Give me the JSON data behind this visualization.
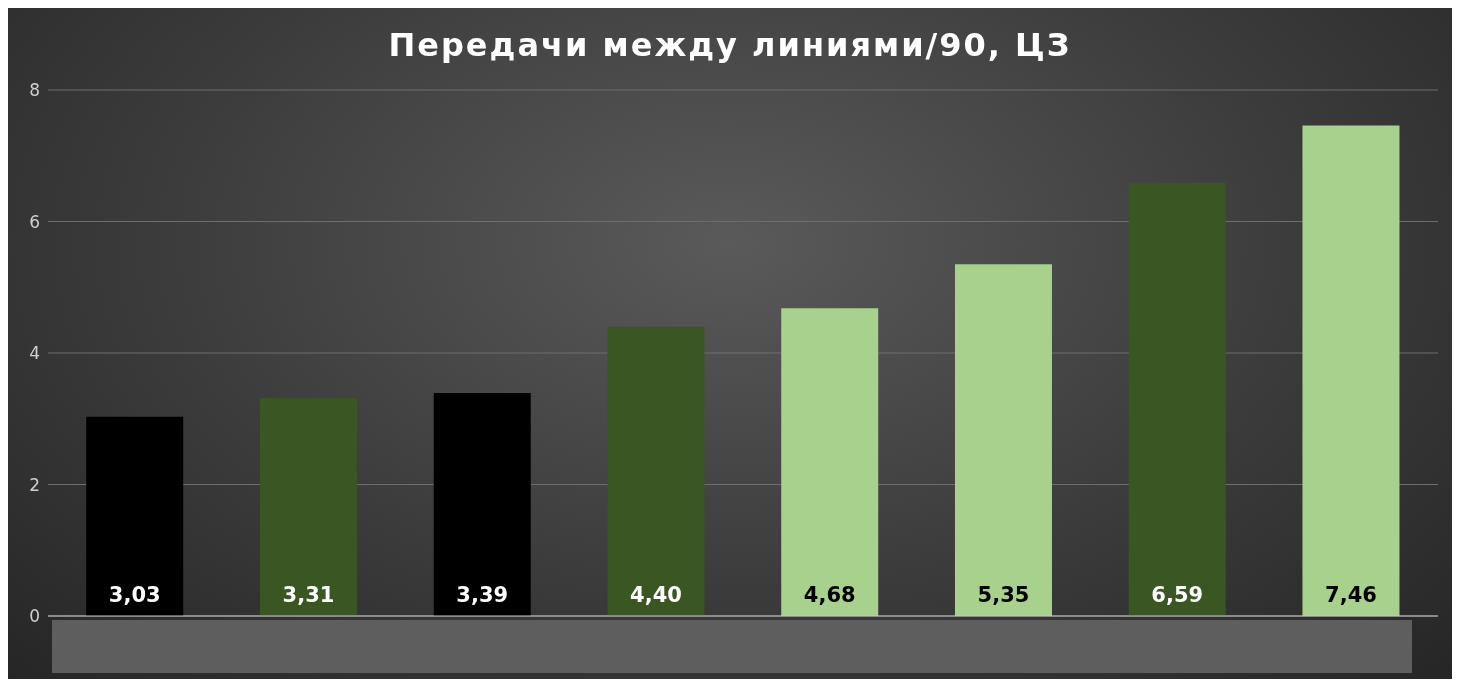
{
  "chart_data": {
    "type": "bar",
    "title": "Передачи между линиями/90, ЦЗ",
    "categories": [
      null,
      null,
      null,
      null,
      null,
      null,
      null,
      null
    ],
    "values": [
      3.03,
      3.31,
      3.39,
      4.4,
      4.68,
      5.35,
      6.59,
      7.46
    ],
    "colors": [
      "#000000",
      "#3a5723",
      "#000000",
      "#3a5723",
      "#a9d18e",
      "#a9d18e",
      "#3a5723",
      "#a9d18e"
    ],
    "value_labels": [
      "3,03",
      "3,31",
      "3,39",
      "4,40",
      "4,68",
      "5,35",
      "6,59",
      "7,46"
    ],
    "ylim": [
      0,
      8
    ],
    "yticks": [
      0,
      2,
      4,
      6,
      8
    ],
    "grid": "y"
  }
}
